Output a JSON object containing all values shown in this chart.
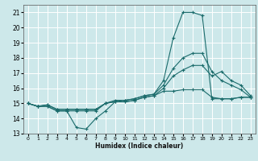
{
  "title": "",
  "xlabel": "Humidex (Indice chaleur)",
  "xlim": [
    -0.5,
    23.5
  ],
  "ylim": [
    13,
    21.5
  ],
  "yticks": [
    13,
    14,
    15,
    16,
    17,
    18,
    19,
    20,
    21
  ],
  "xticks": [
    0,
    1,
    2,
    3,
    4,
    5,
    6,
    7,
    8,
    9,
    10,
    11,
    12,
    13,
    14,
    15,
    16,
    17,
    18,
    19,
    20,
    21,
    22,
    23
  ],
  "bg_color": "#cde8ea",
  "grid_color": "#ffffff",
  "line_color": "#1a6b6b",
  "lines": [
    {
      "x": [
        0,
        1,
        2,
        3,
        4,
        5,
        6,
        7,
        8,
        9,
        10,
        11,
        12,
        13,
        14,
        15,
        16,
        17,
        18,
        19,
        20,
        21,
        22,
        23
      ],
      "y": [
        15.0,
        14.8,
        14.8,
        14.5,
        14.5,
        13.4,
        13.3,
        14.0,
        14.5,
        15.1,
        15.2,
        15.3,
        15.5,
        15.6,
        16.5,
        19.3,
        21.0,
        21.0,
        20.8,
        15.3,
        15.3,
        15.3,
        15.4,
        15.4
      ]
    },
    {
      "x": [
        0,
        1,
        2,
        3,
        4,
        5,
        6,
        7,
        8,
        9,
        10,
        11,
        12,
        13,
        14,
        15,
        16,
        17,
        18,
        19,
        20,
        21,
        22,
        23
      ],
      "y": [
        15.0,
        14.8,
        14.8,
        14.5,
        14.5,
        14.5,
        14.5,
        14.5,
        15.0,
        15.2,
        15.2,
        15.3,
        15.5,
        15.6,
        16.2,
        17.3,
        18.0,
        18.3,
        18.3,
        17.1,
        16.5,
        16.2,
        15.9,
        15.4
      ]
    },
    {
      "x": [
        0,
        1,
        2,
        3,
        4,
        5,
        6,
        7,
        8,
        9,
        10,
        11,
        12,
        13,
        14,
        15,
        16,
        17,
        18,
        19,
        20,
        21,
        22,
        23
      ],
      "y": [
        15.0,
        14.8,
        14.9,
        14.6,
        14.6,
        14.6,
        14.6,
        14.6,
        15.0,
        15.1,
        15.1,
        15.2,
        15.4,
        15.5,
        16.0,
        16.8,
        17.2,
        17.5,
        17.5,
        16.8,
        17.1,
        16.5,
        16.2,
        15.5
      ]
    },
    {
      "x": [
        0,
        1,
        2,
        3,
        4,
        5,
        6,
        7,
        8,
        9,
        10,
        11,
        12,
        13,
        14,
        15,
        16,
        17,
        18,
        19,
        20,
        21,
        22,
        23
      ],
      "y": [
        15.0,
        14.8,
        14.9,
        14.6,
        14.6,
        14.6,
        14.6,
        14.6,
        15.0,
        15.1,
        15.1,
        15.2,
        15.4,
        15.5,
        15.8,
        15.8,
        15.9,
        15.9,
        15.9,
        15.4,
        15.3,
        15.3,
        15.4,
        15.4
      ]
    }
  ]
}
